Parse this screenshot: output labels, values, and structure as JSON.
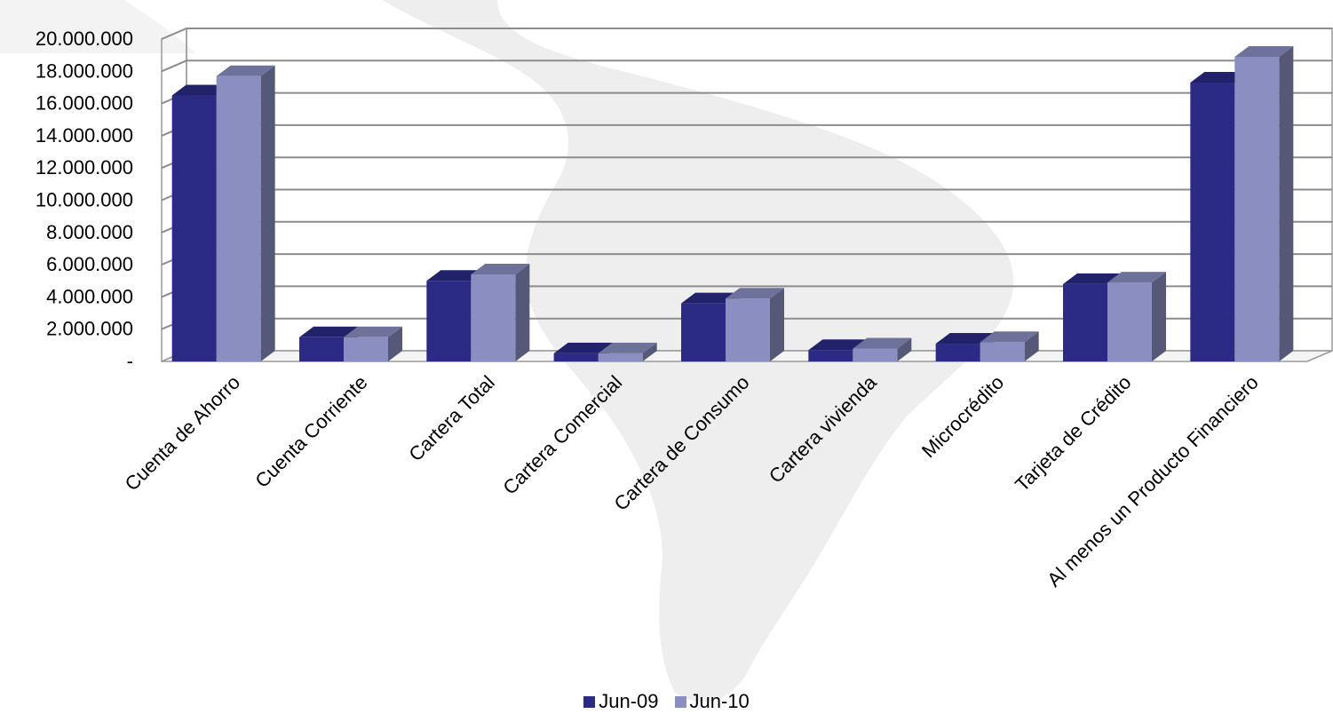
{
  "chart_data": {
    "type": "bar",
    "title": "",
    "xlabel": "",
    "ylabel": "",
    "ylim": [
      0,
      20000000
    ],
    "yticks": [
      0,
      2000000,
      4000000,
      6000000,
      8000000,
      10000000,
      12000000,
      14000000,
      16000000,
      18000000,
      20000000
    ],
    "ytick_labels": [
      "-",
      "2.000.000",
      "4.000.000",
      "6.000.000",
      "8.000.000",
      "10.000.000",
      "12.000.000",
      "14.000.000",
      "16.000.000",
      "18.000.000",
      "20.000.000"
    ],
    "grid": true,
    "three_d": true,
    "legend_position": "bottom",
    "categories": [
      "Cuenta de Ahorro",
      "Cuenta Corriente",
      "Cartera Total",
      "Cartera Comercial",
      "Cartera de Consumo",
      "Cartera vivienda",
      "Microcrédito",
      "Tarjeta  de Crédito",
      "Al menos un Producto Financiero"
    ],
    "series": [
      {
        "name": "Jun-09",
        "color": "#2b2a85",
        "values": [
          16500000,
          1500000,
          5000000,
          500000,
          3600000,
          700000,
          1100000,
          4800000,
          17300000
        ]
      },
      {
        "name": "Jun-10",
        "color": "#8a8ec1",
        "values": [
          17700000,
          1500000,
          5400000,
          500000,
          3900000,
          800000,
          1200000,
          4900000,
          18900000
        ]
      }
    ]
  }
}
